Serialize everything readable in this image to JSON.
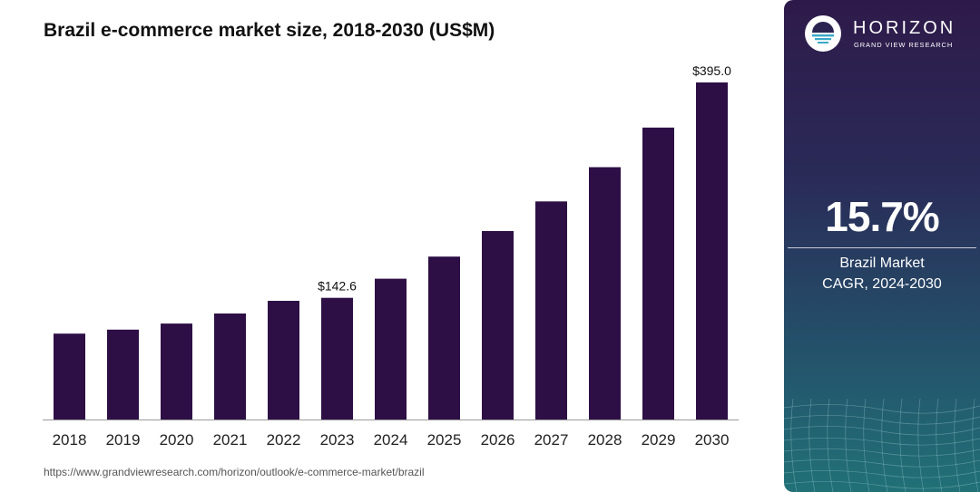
{
  "chart_data": {
    "type": "bar",
    "title": "Brazil e-commerce market size, 2018-2030 (US$M)",
    "categories": [
      "2018",
      "2019",
      "2020",
      "2021",
      "2022",
      "2023",
      "2024",
      "2025",
      "2026",
      "2027",
      "2028",
      "2029",
      "2030"
    ],
    "values": [
      100.7,
      105.3,
      112.5,
      124.2,
      139.1,
      142.6,
      165.0,
      190.9,
      220.9,
      255.6,
      295.7,
      342.1,
      395.0
    ],
    "data_labels": [
      {
        "category": "2023",
        "text": "$142.6"
      },
      {
        "category": "2030",
        "text": "$395.0"
      }
    ],
    "ylim": [
      0,
      395.0
    ],
    "bar_color": "#2d0f45",
    "grid": false,
    "legend": "none"
  },
  "source_url": "https://www.grandviewresearch.com/horizon/outlook/e-commerce-market/brazil",
  "side_panel": {
    "brand": "HORIZON",
    "brand_sub": "GRAND VIEW RESEARCH",
    "cagr_value": "15.7%",
    "cagr_label_line1": "Brazil Market",
    "cagr_label_line2": "CAGR, 2024-2030"
  }
}
